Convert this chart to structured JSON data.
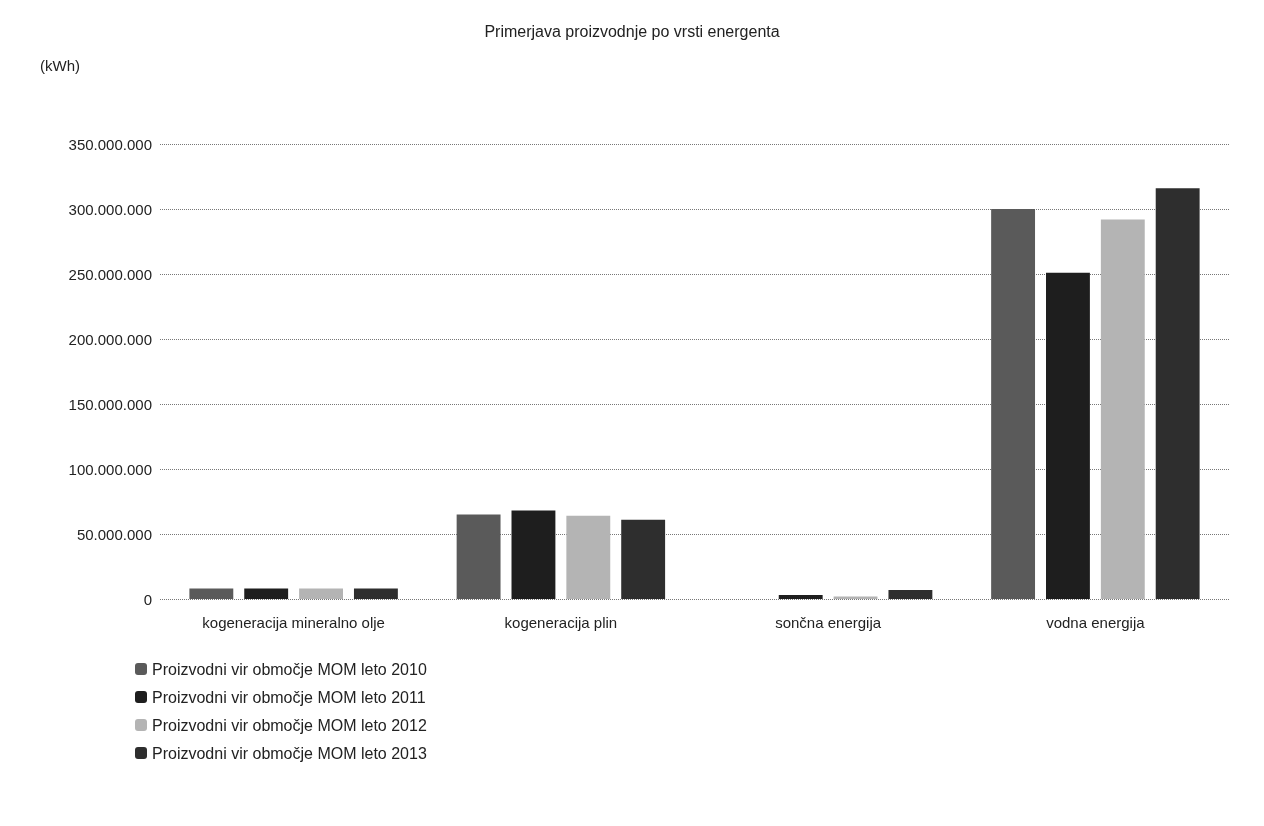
{
  "chart_data": {
    "type": "bar",
    "title": "Primerjava proizvodnje po vrsti energenta",
    "ylabel": "(kWh)",
    "categories": [
      "kogeneracija mineralno olje",
      "kogeneracija plin",
      "sončna energija",
      "vodna energija"
    ],
    "series": [
      {
        "name": "Proizvodni vir območje MOM leto 2010",
        "color": "#5a5a5a",
        "values": [
          8000000,
          65000000,
          0,
          300000000
        ]
      },
      {
        "name": "Proizvodni vir območje MOM leto 2011",
        "color": "#1e1e1e",
        "values": [
          8000000,
          68000000,
          3000000,
          251000000
        ]
      },
      {
        "name": "Proizvodni vir območje MOM leto 2012",
        "color": "#b4b4b4",
        "values": [
          8000000,
          64000000,
          2000000,
          292000000
        ]
      },
      {
        "name": "Proizvodni vir območje MOM leto 2013",
        "color": "#2e2e2e",
        "values": [
          8000000,
          61000000,
          7000000,
          316000000
        ]
      }
    ],
    "ylim": [
      0,
      350000000
    ],
    "yticks": [
      0,
      {
        "value": 50000000,
        "label": "50.000.000"
      },
      {
        "value": 100000000,
        "label": "100.000.000"
      },
      {
        "value": 150000000,
        "label": "150.000.000"
      },
      {
        "value": 200000000,
        "label": "200.000.000"
      },
      {
        "value": 250000000,
        "label": "250.000.000"
      },
      {
        "value": 300000000,
        "label": "300.000.000"
      },
      {
        "value": 350000000,
        "label": "350.000.000"
      }
    ],
    "grid": "y",
    "legend": "bottom"
  }
}
